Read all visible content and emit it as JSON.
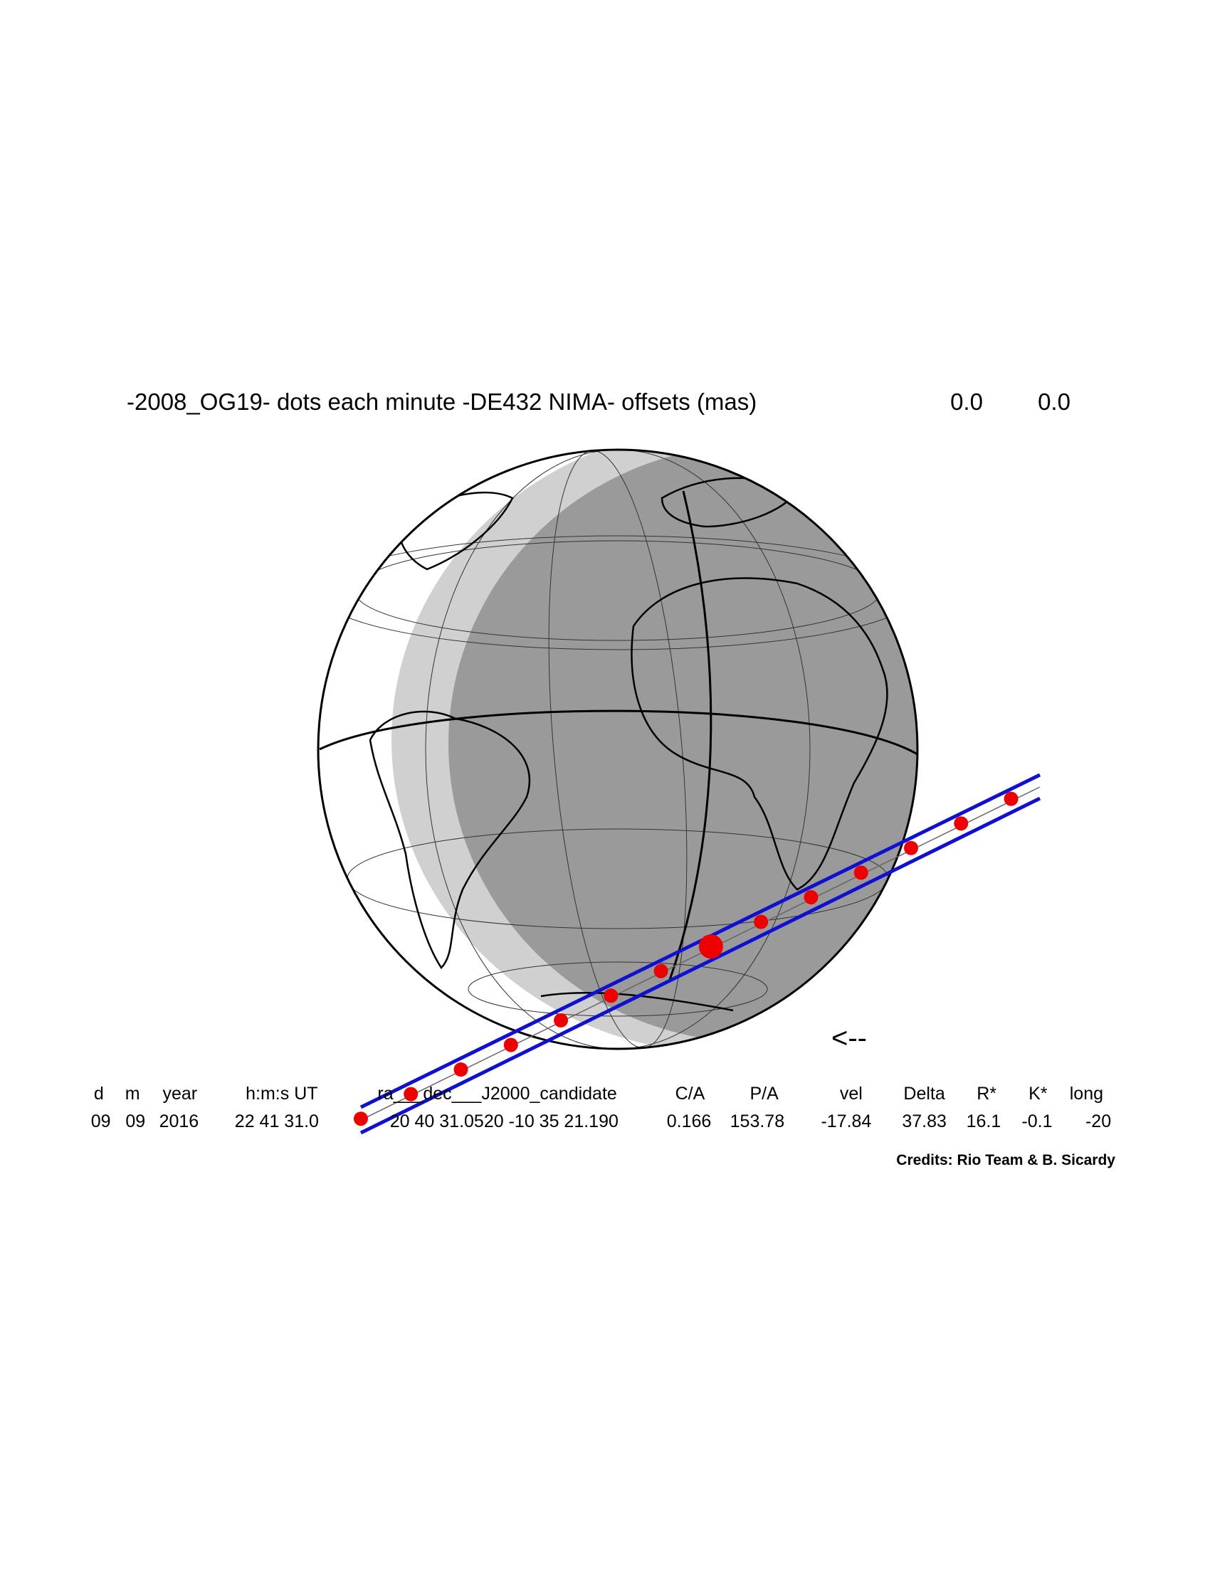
{
  "title": "-2008_OG19- dots each minute -DE432 NIMA- offsets (mas)",
  "offsets": [
    "0.0",
    "0.0"
  ],
  "table": {
    "headers": [
      "d",
      "m",
      "year",
      "h:m:s UT",
      "ra___dec___J2000_candidate",
      "C/A",
      "P/A",
      "vel",
      "Delta",
      "R*",
      "K*",
      "long"
    ],
    "values": [
      "09",
      "09",
      "2016",
      "22 41 31.0",
      "20 40 31.0520 -10 35 21.190",
      "0.166",
      "153.78",
      "-17.84",
      "37.83",
      "16.1",
      "-0.1",
      "-20"
    ]
  },
  "direction": "<--",
  "credits": "Credits: Rio Team & B. Sicardy"
}
